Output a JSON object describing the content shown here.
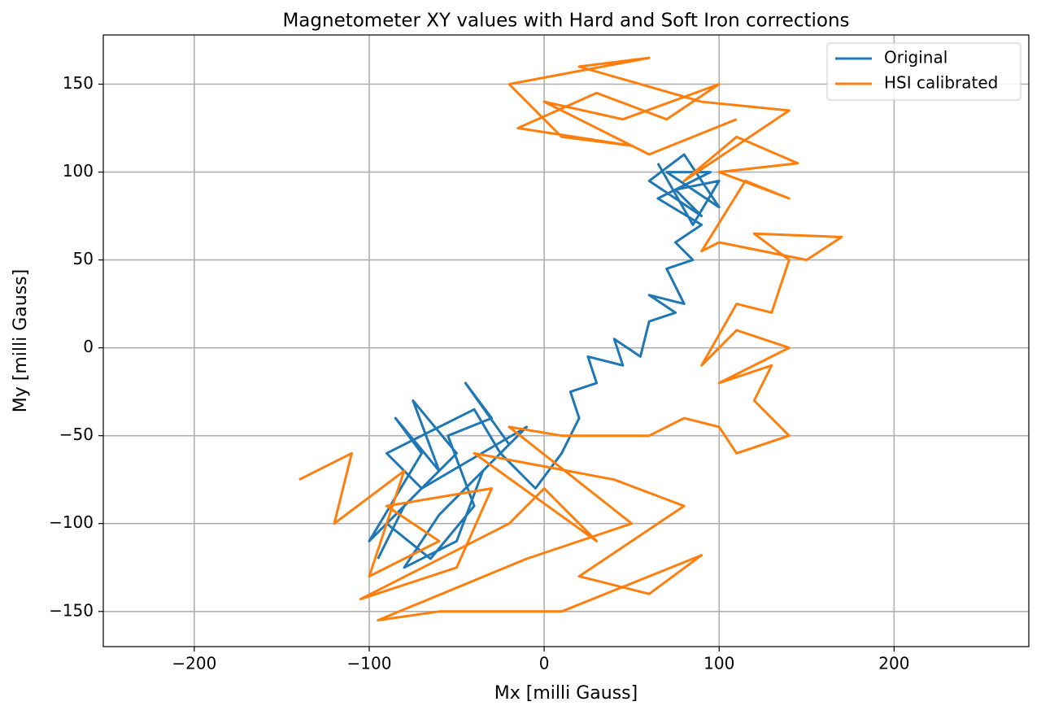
{
  "chart_data": {
    "type": "line",
    "title": "Magnetometer XY values with Hard and Soft Iron corrections",
    "x_label": "Mx [milli Gauss]",
    "y_label": "My [milli Gauss]",
    "xlim": [
      -252,
      277
    ],
    "ylim": [
      -170,
      178
    ],
    "xticks": [
      {
        "value": -200,
        "label": "−200"
      },
      {
        "value": -100,
        "label": "−100"
      },
      0,
      100,
      200
    ],
    "yticks": [
      {
        "value": -150,
        "label": "−150"
      },
      {
        "value": -100,
        "label": "−100"
      },
      {
        "value": -50,
        "label": "−50"
      },
      0,
      50,
      100,
      150
    ],
    "grid": true,
    "legend": "upper-right",
    "series": [
      {
        "name": "Original",
        "color": "#1f77b4",
        "x": [
          -95,
          -80,
          -100,
          -70,
          -85,
          -60,
          -75,
          -50,
          -90,
          -65,
          -40,
          -55,
          -30,
          -45,
          -20,
          -60,
          -80,
          -50,
          -35,
          -10,
          -70,
          -90,
          -40,
          -25,
          -5,
          10,
          20,
          15,
          30,
          25,
          45,
          40,
          55,
          60,
          75,
          60,
          80,
          70,
          85,
          75,
          90,
          65,
          95,
          70,
          100,
          80,
          60,
          90,
          75,
          100,
          85,
          65
        ],
        "values": [
          -120,
          -90,
          -110,
          -60,
          -40,
          -70,
          -30,
          -60,
          -100,
          -120,
          -90,
          -50,
          -40,
          -20,
          -55,
          -95,
          -125,
          -110,
          -70,
          -45,
          -80,
          -60,
          -35,
          -60,
          -80,
          -60,
          -40,
          -25,
          -20,
          -5,
          -10,
          5,
          -5,
          15,
          20,
          30,
          25,
          45,
          50,
          60,
          70,
          85,
          100,
          100,
          80,
          110,
          95,
          75,
          90,
          95,
          70,
          105
        ]
      },
      {
        "name": "HSI calibrated",
        "color": "#ff7f0e",
        "x": [
          -140,
          -110,
          -120,
          -80,
          -100,
          -60,
          -90,
          -30,
          -50,
          -105,
          -20,
          0,
          30,
          -40,
          40,
          80,
          20,
          60,
          90,
          10,
          -60,
          -95,
          -10,
          50,
          -20,
          10,
          60,
          80,
          100,
          110,
          140,
          120,
          130,
          100,
          140,
          110,
          90,
          110,
          130,
          140,
          120,
          170,
          150,
          100,
          90,
          115,
          140,
          100,
          145,
          110,
          80,
          140,
          90,
          20,
          60,
          -20,
          10,
          50,
          -15,
          30,
          70,
          100,
          45,
          0,
          60,
          110
        ],
        "values": [
          -75,
          -60,
          -100,
          -70,
          -130,
          -110,
          -90,
          -80,
          -125,
          -143,
          -100,
          -80,
          -110,
          -60,
          -75,
          -90,
          -130,
          -140,
          -118,
          -150,
          -150,
          -155,
          -120,
          -100,
          -45,
          -50,
          -50,
          -40,
          -45,
          -60,
          -50,
          -30,
          -10,
          -20,
          0,
          10,
          -10,
          25,
          20,
          50,
          65,
          63,
          50,
          60,
          55,
          95,
          85,
          100,
          105,
          120,
          95,
          135,
          140,
          160,
          165,
          150,
          120,
          115,
          125,
          145,
          130,
          150,
          130,
          140,
          110,
          130
        ]
      }
    ]
  }
}
